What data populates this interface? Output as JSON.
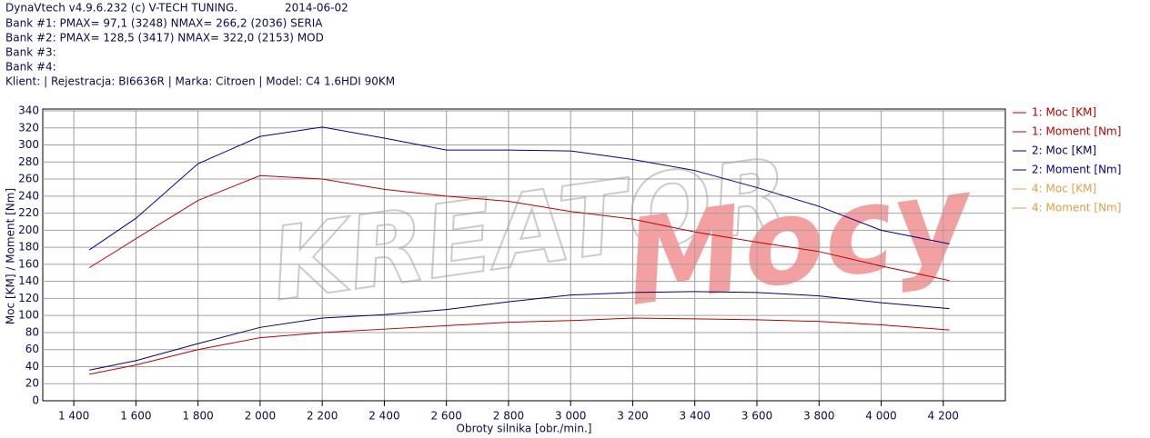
{
  "header": {
    "line1": "DynaVtech v4.9.6.232 (c) V-TECH TUNING.",
    "date": "2014-06-02",
    "banks": [
      "Bank #1: PMAX= 97,1 (3248)   NMAX= 266,2 (2036)   SERIA",
      "Bank #2: PMAX= 128,5 (3417)   NMAX= 322,0 (2153)   MOD",
      "Bank #3:",
      "Bank #4:"
    ],
    "client": "Klient:  | Rejestracja: BI6636R | Marka: Citroen | Model: C4 1.6HDI 90KM"
  },
  "chart_data": {
    "type": "line",
    "watermark": [
      "KREATOR",
      "Mocy"
    ],
    "ylabel": "Moc [KM] / Moment [Nm]",
    "xlabel": "Obroty silnika [obr./min.]",
    "x": [
      1450,
      1600,
      1800,
      2000,
      2200,
      2400,
      2600,
      2800,
      3000,
      3200,
      3400,
      3600,
      3800,
      4000,
      4220
    ],
    "series": [
      {
        "name": "1: Moc [KM]",
        "color": "#b80000",
        "values": [
          31,
          42,
          60,
          74,
          80,
          84,
          88,
          92,
          94,
          97,
          96,
          95,
          93,
          89,
          83
        ]
      },
      {
        "name": "1: Moment [Nm]",
        "color": "#c00000",
        "values": [
          156,
          190,
          235,
          264,
          260,
          248,
          240,
          234,
          222,
          213,
          198,
          186,
          175,
          158,
          141
        ]
      },
      {
        "name": "2: Moc [KM]",
        "color": "#00006e",
        "values": [
          36,
          47,
          67,
          86,
          97,
          101,
          107,
          116,
          124,
          127,
          128,
          127,
          123,
          115,
          108
        ]
      },
      {
        "name": "2: Moment [Nm]",
        "color": "#000090",
        "values": [
          177,
          214,
          278,
          310,
          321,
          308,
          294,
          294,
          293,
          283,
          270,
          250,
          228,
          200,
          184
        ]
      },
      {
        "name": "4: Moc [KM]",
        "color": "#e0a040",
        "values": [
          null,
          null,
          null,
          null,
          null,
          null,
          null,
          null,
          null,
          null,
          null,
          null,
          null,
          null,
          null
        ]
      },
      {
        "name": "4: Moment [Nm]",
        "color": "#e0a040",
        "values": [
          null,
          null,
          null,
          null,
          null,
          null,
          null,
          null,
          null,
          null,
          null,
          null,
          null,
          null,
          null
        ]
      }
    ],
    "xlim": [
      1300,
      4400
    ],
    "xticks": [
      {
        "value": 1400,
        "label": "1 400"
      },
      {
        "value": 1600,
        "label": "1 600"
      },
      {
        "value": 1800,
        "label": "1 800"
      },
      {
        "value": 2000,
        "label": "2 000"
      },
      {
        "value": 2200,
        "label": "2 200"
      },
      {
        "value": 2400,
        "label": "2 400"
      },
      {
        "value": 2600,
        "label": "2 600"
      },
      {
        "value": 2800,
        "label": "2 800"
      },
      {
        "value": 3000,
        "label": "3 000"
      },
      {
        "value": 3200,
        "label": "3 200"
      },
      {
        "value": 3400,
        "label": "3 400"
      },
      {
        "value": 3600,
        "label": "3 600"
      },
      {
        "value": 3800,
        "label": "3 800"
      },
      {
        "value": 4000,
        "label": "4 000"
      },
      {
        "value": 4200,
        "label": "4 200"
      }
    ],
    "ylim": [
      0,
      340
    ],
    "yticks": [
      0,
      20,
      40,
      60,
      80,
      100,
      120,
      140,
      160,
      180,
      200,
      220,
      240,
      260,
      280,
      300,
      320,
      340
    ],
    "grid": true,
    "legend": "right"
  }
}
